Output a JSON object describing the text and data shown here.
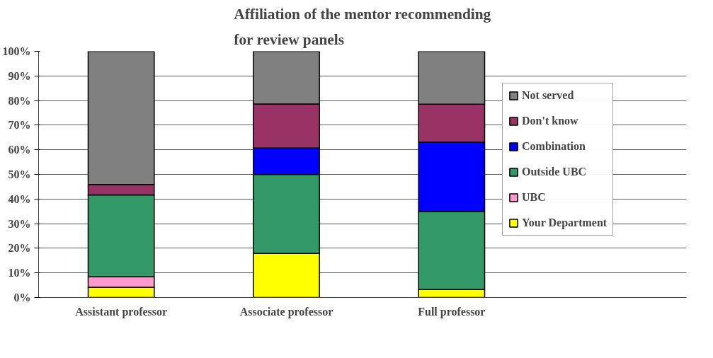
{
  "chart_data": {
    "type": "bar",
    "title": "Affiliation of the mentor recommending\nfor review panels",
    "categories": [
      "Assistant professor",
      "Associate professor",
      "Full professor"
    ],
    "stacked": true,
    "series": [
      {
        "name": "Your Department",
        "color": "#ffff00",
        "values": [
          4.2,
          17.9,
          3.2
        ]
      },
      {
        "name": "UBC",
        "color": "#ff99cc",
        "values": [
          4.2,
          0,
          0
        ]
      },
      {
        "name": "Outside UBC",
        "color": "#339966",
        "values": [
          33.3,
          32.1,
          31.8
        ]
      },
      {
        "name": "Combination",
        "color": "#0000ff",
        "values": [
          0,
          10.7,
          28.1
        ]
      },
      {
        "name": "Don't know",
        "color": "#993366",
        "values": [
          4.2,
          17.9,
          15.4
        ]
      },
      {
        "name": "Not served",
        "color": "#808080",
        "values": [
          54.1,
          21.4,
          21.5
        ]
      }
    ],
    "ylim": [
      0,
      100
    ],
    "yticks": [
      {
        "value": 0,
        "label": "0%"
      },
      {
        "value": 10,
        "label": "10%"
      },
      {
        "value": 20,
        "label": "20%"
      },
      {
        "value": 30,
        "label": "30%"
      },
      {
        "value": 40,
        "label": "40%"
      },
      {
        "value": 50,
        "label": "50%"
      },
      {
        "value": 60,
        "label": "60%"
      },
      {
        "value": 70,
        "label": "70%"
      },
      {
        "value": 80,
        "label": "80%"
      },
      {
        "value": 90,
        "label": "90%"
      },
      {
        "value": 100,
        "label": "100%"
      }
    ],
    "grid": "y",
    "legend": "right"
  }
}
